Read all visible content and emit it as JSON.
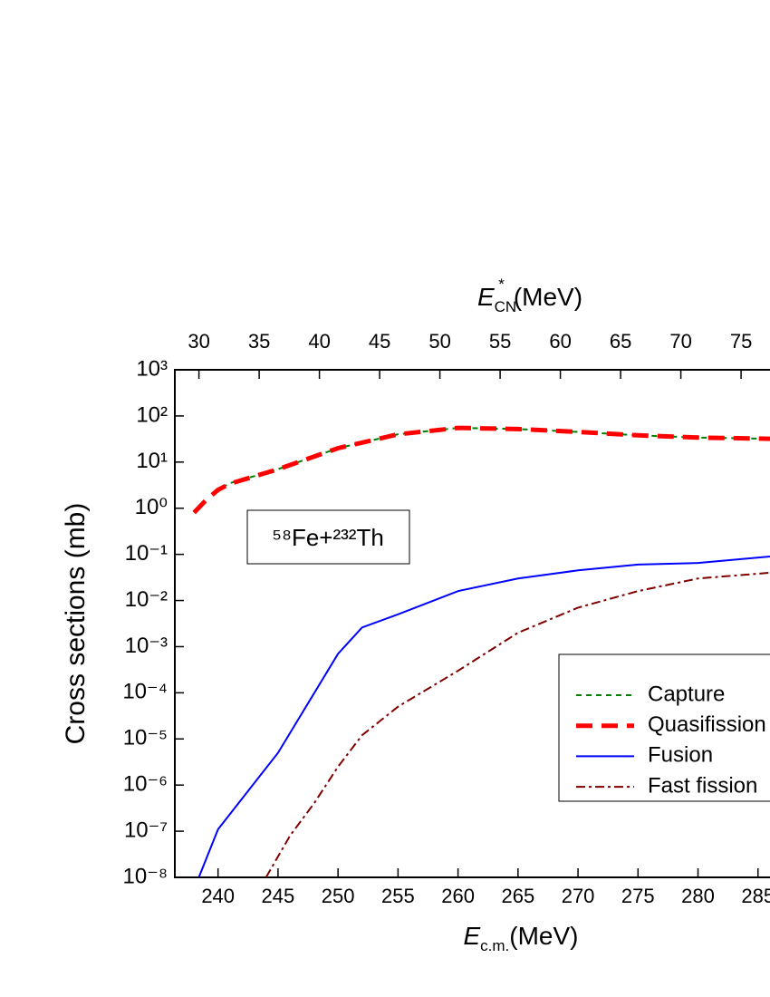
{
  "chart_data": {
    "type": "line",
    "xlabel": {
      "main": "E",
      "sub": "c.m.",
      "unit": "(MeV)"
    },
    "x2label": {
      "main": "E",
      "sub": "CN",
      "sup": "*",
      "unit": "(MeV)"
    },
    "ylabel": "Cross sections (mb)",
    "annotation": "⁵⁸Fe+²³²Th",
    "xlim": [
      236.4,
      286
    ],
    "xticks": [
      240,
      245,
      250,
      255,
      260,
      265,
      270,
      275,
      280,
      285
    ],
    "x2lim": [
      28,
      77.4
    ],
    "x2ticks": [
      30,
      35,
      40,
      45,
      50,
      55,
      60,
      65,
      70,
      75
    ],
    "ylim": [
      1e-08,
      1000
    ],
    "yscale": "log",
    "yticks": [
      {
        "value": 1000,
        "label": "10³"
      },
      {
        "value": 100,
        "label": "10²"
      },
      {
        "value": 10,
        "label": "10¹"
      },
      {
        "value": 1,
        "label": "10⁰"
      },
      {
        "value": 0.1,
        "label": "10⁻¹"
      },
      {
        "value": 0.01,
        "label": "10⁻²"
      },
      {
        "value": 0.001,
        "label": "10⁻³"
      },
      {
        "value": 0.0001,
        "label": "10⁻⁴"
      },
      {
        "value": 1e-05,
        "label": "10⁻⁵"
      },
      {
        "value": 1e-06,
        "label": "10⁻⁶"
      },
      {
        "value": 1e-07,
        "label": "10⁻⁷"
      },
      {
        "value": 1e-08,
        "label": "10⁻⁸"
      }
    ],
    "legend": "lower right",
    "series": [
      {
        "name": "Capture",
        "color": "#008000",
        "linestyle": "dashed",
        "x": [
          239.6,
          241,
          245,
          250,
          255,
          260,
          265,
          270,
          275,
          280,
          286
        ],
        "values": [
          2.2,
          3.5,
          7,
          20,
          40,
          55,
          52,
          45,
          38,
          34,
          32
        ]
      },
      {
        "name": "Quasifission",
        "color": "#ff0000",
        "linestyle": "thick-dashed",
        "x": [
          238,
          239,
          240,
          241,
          245,
          250,
          255,
          260,
          265,
          270,
          275,
          280,
          286
        ],
        "values": [
          0.8,
          1.5,
          2.5,
          3.4,
          7,
          20,
          40,
          55,
          52,
          45,
          38,
          34,
          32
        ]
      },
      {
        "name": "Fusion",
        "color": "#0000ff",
        "linestyle": "solid",
        "x": [
          238.4,
          240,
          245,
          250,
          252,
          255,
          260,
          265,
          270,
          275,
          280,
          286
        ],
        "values": [
          1e-08,
          1.1e-07,
          5e-06,
          0.0007,
          0.0026,
          0.005,
          0.016,
          0.03,
          0.045,
          0.06,
          0.065,
          0.09
        ]
      },
      {
        "name": "Fast fission",
        "color": "#800000",
        "linestyle": "dash-dot",
        "x": [
          244,
          246,
          248,
          250,
          252,
          255,
          260,
          265,
          270,
          275,
          280,
          286
        ],
        "values": [
          1e-08,
          8e-08,
          4e-07,
          2.5e-06,
          1.2e-05,
          5e-05,
          0.0003,
          0.002,
          0.007,
          0.016,
          0.03,
          0.04
        ]
      }
    ]
  }
}
